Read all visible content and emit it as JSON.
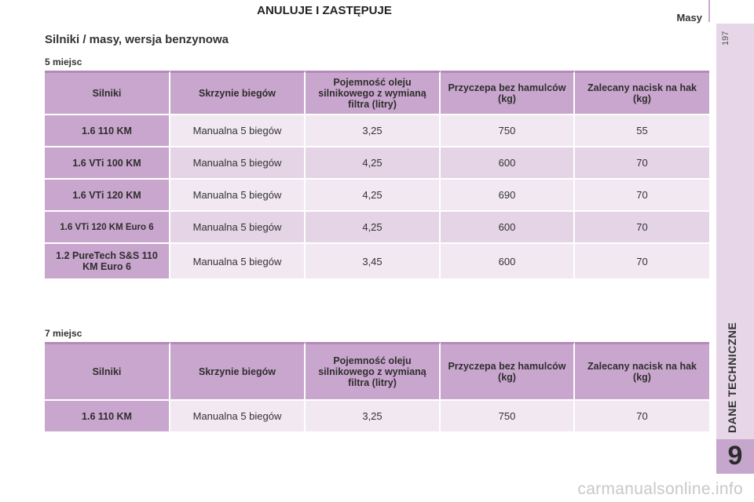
{
  "banner": "ANULUJE I ZASTĘPUJE",
  "header": {
    "section": "Masy",
    "page_number": "197"
  },
  "side_tab": {
    "title": "DANE TECHNICZNE",
    "chapter": "9"
  },
  "page_title": "Silniki / masy, wersja benzynowa",
  "tables": [
    {
      "label": "5 miejsc",
      "columns": [
        "Silniki",
        "Skrzynie biegów",
        "Pojemność oleju silnikowego z wymianą filtra (litry)",
        "Przyczepa bez hamulców (kg)",
        "Zalecany nacisk na hak (kg)"
      ],
      "rows": [
        [
          "1.6 110 KM",
          "Manualna 5 biegów",
          "3,25",
          "750",
          "55"
        ],
        [
          "1.6 VTi 100 KM",
          "Manualna 5 biegów",
          "4,25",
          "600",
          "70"
        ],
        [
          "1.6 VTi 120 KM",
          "Manualna 5 biegów",
          "4,25",
          "690",
          "70"
        ],
        [
          "1.6 VTi 120 KM Euro 6",
          "Manualna 5 biegów",
          "4,25",
          "600",
          "70"
        ],
        [
          "1.2 PureTech S&S 110 KM Euro 6",
          "Manualna 5 biegów",
          "3,45",
          "600",
          "70"
        ]
      ]
    },
    {
      "label": "7 miejsc",
      "columns": [
        "Silniki",
        "Skrzynie biegów",
        "Pojemność oleju silnikowego z wymianą filtra (litry)",
        "Przyczepa bez hamulców (kg)",
        "Zalecany nacisk na hak (kg)"
      ],
      "rows": [
        [
          "1.6 110 KM",
          "Manualna 5 biegów",
          "3,25",
          "750",
          "70"
        ]
      ]
    }
  ],
  "watermark": "carmanualsonline.info"
}
